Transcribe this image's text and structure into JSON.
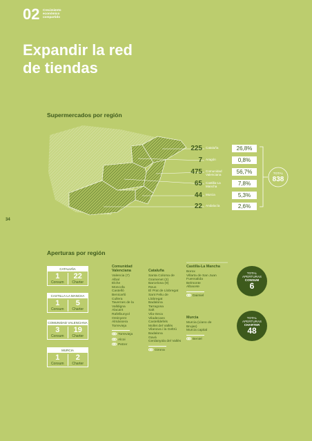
{
  "header": {
    "section": "02",
    "subtitle": [
      "Crecimiento",
      "económico",
      "compartido"
    ]
  },
  "title": [
    "Expandir la red",
    "de tiendas"
  ],
  "supermarkets": {
    "heading": "Supermercados por región",
    "rows": [
      {
        "count": "225",
        "region": "Cataluña",
        "share": "26,8%"
      },
      {
        "count": "7",
        "region": "Aragón",
        "share": "0,8%"
      },
      {
        "count": "475",
        "region": "Comunidad Valenciana",
        "share": "56,7%"
      },
      {
        "count": "65",
        "region": "Castilla-La Mancha",
        "share": "7,8%"
      },
      {
        "count": "44",
        "region": "Murcia",
        "share": "5,3%"
      },
      {
        "count": "22",
        "region": "Andalucía",
        "share": "2,6%"
      }
    ],
    "total_label": "TOTAL",
    "total": "838"
  },
  "page_number": "34",
  "openings": {
    "heading": "Aperturas por región",
    "boxes": [
      {
        "region": "CATALUÑA",
        "consum": "1",
        "consum_label": "Consum",
        "charter": "22",
        "charter_label": "Charter"
      },
      {
        "region": "CASTILLA-LA MANCHA",
        "consum": "1",
        "consum_label": "Consum",
        "charter": "5",
        "charter_label": "Charter"
      },
      {
        "region": "COMUNIDAD VALENCIANA",
        "consum": "3",
        "consum_label": "Consum",
        "charter": "19",
        "charter_label": "Charter"
      },
      {
        "region": "MURCIA",
        "consum": "1",
        "consum_label": "Consum",
        "charter": "2",
        "charter_label": "Charter"
      }
    ],
    "columns": [
      {
        "title": "Comunidad Valenciana",
        "places": [
          "Valencia (7)",
          "Albal",
          "Elche",
          "Moncofa",
          "Castelló",
          "Benicarló",
          "Cullera",
          "Tavernes de la Valldigna",
          "Alacant",
          "Rafelbunyol",
          "Ontinyent",
          "Almàssera",
          "Torrevieja"
        ],
        "charter_places": [
          "Torrevieja",
          "Alcoi",
          "Petrer"
        ]
      },
      {
        "title": "Cataluña",
        "places": [
          "Santa Coloma de Gramenet (2)",
          "Barcelona (9)",
          "Reus",
          "El Prat de Llobregat",
          "Sant Feliu de Llobregat",
          "Badalona",
          "Tarragona",
          "Salt",
          "Vila-Seca",
          "Viladecans",
          "Castelldefels",
          "Mollet del Vallès",
          "Vilanova i la Geltrú",
          "Badalona",
          "Gavà",
          "Cerdanyola del Vallès"
        ],
        "charter_places": [
          "Girona"
        ]
      },
      {
        "title": "Castilla-La Mancha",
        "places": [
          "Borox",
          "Villarta de San Juan",
          "Fuensalida",
          "Belmonte",
          "Albacete"
        ],
        "charter_places": [
          "Daimiel"
        ]
      },
      {
        "title": "Murcia",
        "places": [
          "Murcia (Llano de Brujas)",
          "Murcia capital"
        ],
        "charter_places": [
          "Beniel"
        ]
      }
    ],
    "badges": [
      {
        "lines": [
          "TOTAL",
          "APERTURAS",
          "CONSUM"
        ],
        "value": "6"
      },
      {
        "lines": [
          "TOTAL",
          "APERTURAS",
          "CHARTER"
        ],
        "value": "48"
      }
    ]
  }
}
